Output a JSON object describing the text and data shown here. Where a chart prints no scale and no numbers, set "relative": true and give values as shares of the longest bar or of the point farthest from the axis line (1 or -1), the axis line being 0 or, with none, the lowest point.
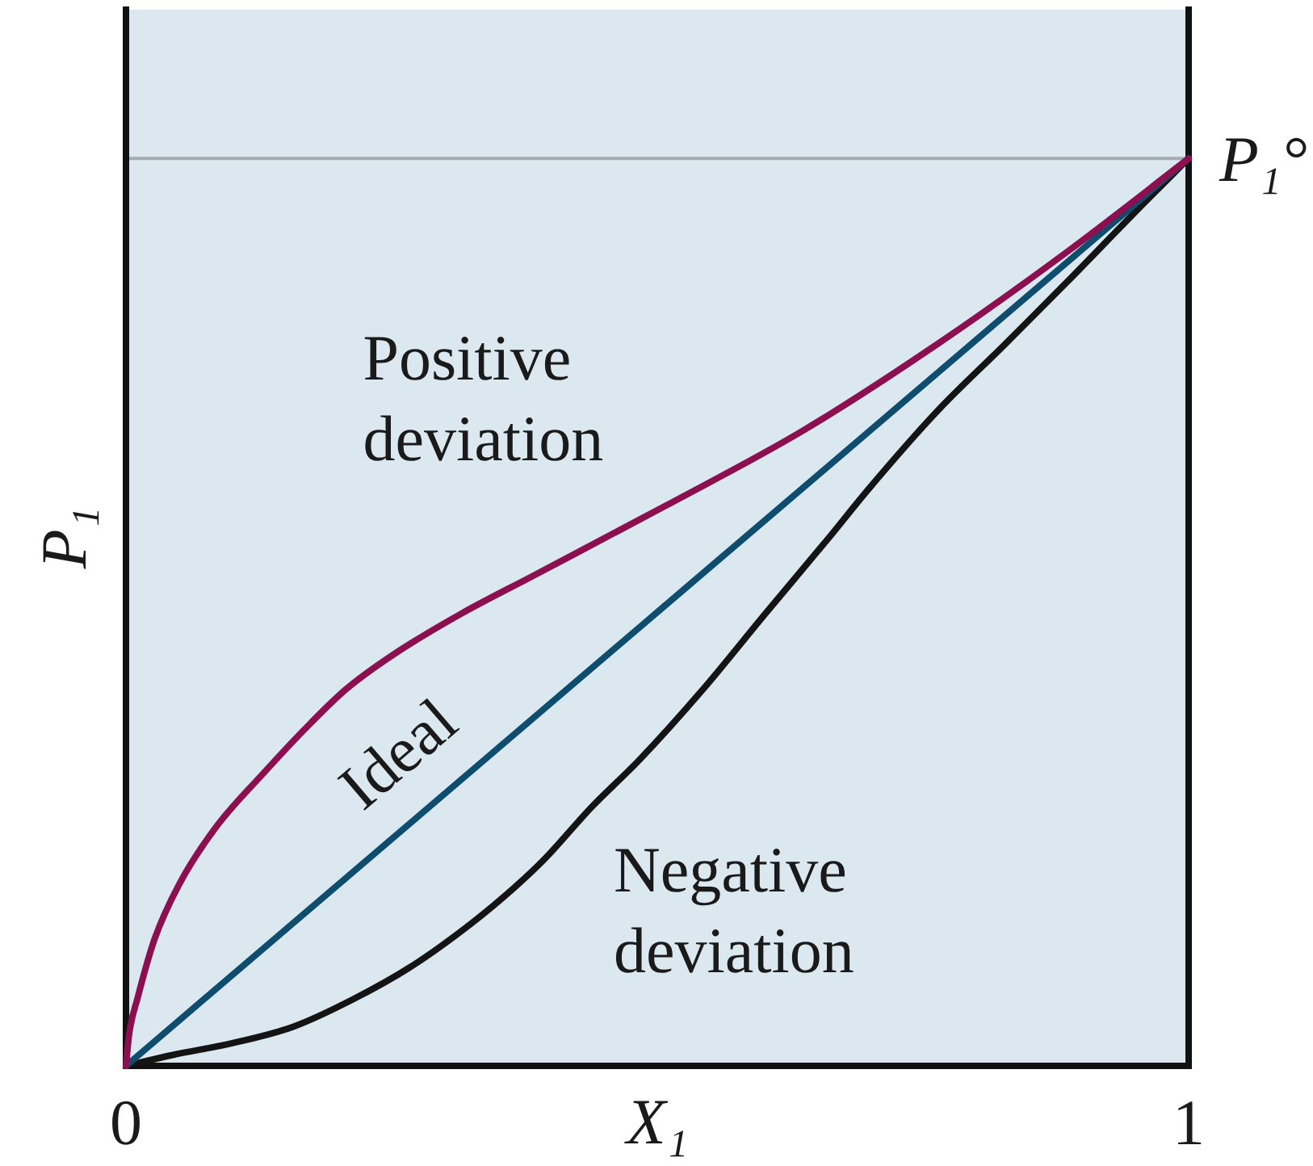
{
  "chart_data": {
    "type": "line",
    "xlabel": "X₁",
    "ylabel": "P₁",
    "relative": true,
    "xlim": [
      0,
      1
    ],
    "xticks": [
      0,
      1
    ],
    "marker": "none",
    "series": [
      {
        "name": "Positive deviation",
        "color": "#8c0f4f",
        "x": [
          0,
          0.003,
          0.011,
          0.027,
          0.05,
          0.084,
          0.129,
          0.169,
          0.207,
          0.25,
          0.315,
          0.383,
          0.509,
          0.637,
          0.763,
          0.889,
          1
        ],
        "values": [
          0,
          0.035,
          0.075,
          0.14,
          0.2,
          0.262,
          0.322,
          0.372,
          0.415,
          0.452,
          0.498,
          0.54,
          0.618,
          0.7,
          0.795,
          0.9,
          1
        ]
      },
      {
        "name": "Ideal",
        "color": "#0f4d6e",
        "x": [
          0,
          1
        ],
        "values": [
          0,
          1
        ]
      },
      {
        "name": "Negative deviation",
        "color": "#141414",
        "x": [
          0,
          0.044,
          0.1,
          0.157,
          0.213,
          0.269,
          0.325,
          0.365,
          0.394,
          0.438,
          0.483,
          0.543,
          0.6,
          0.66,
          0.699,
          0.763,
          0.827,
          0.889,
          0.953,
          1
        ],
        "values": [
          0,
          0.012,
          0.025,
          0.043,
          0.073,
          0.11,
          0.157,
          0.196,
          0.228,
          0.285,
          0.337,
          0.415,
          0.496,
          0.58,
          0.636,
          0.721,
          0.795,
          0.868,
          0.945,
          1
        ]
      }
    ],
    "ref_lines": [
      {
        "axis": "y",
        "value": 1,
        "label": "P₁°",
        "color": "#a3aab0"
      }
    ]
  }
}
